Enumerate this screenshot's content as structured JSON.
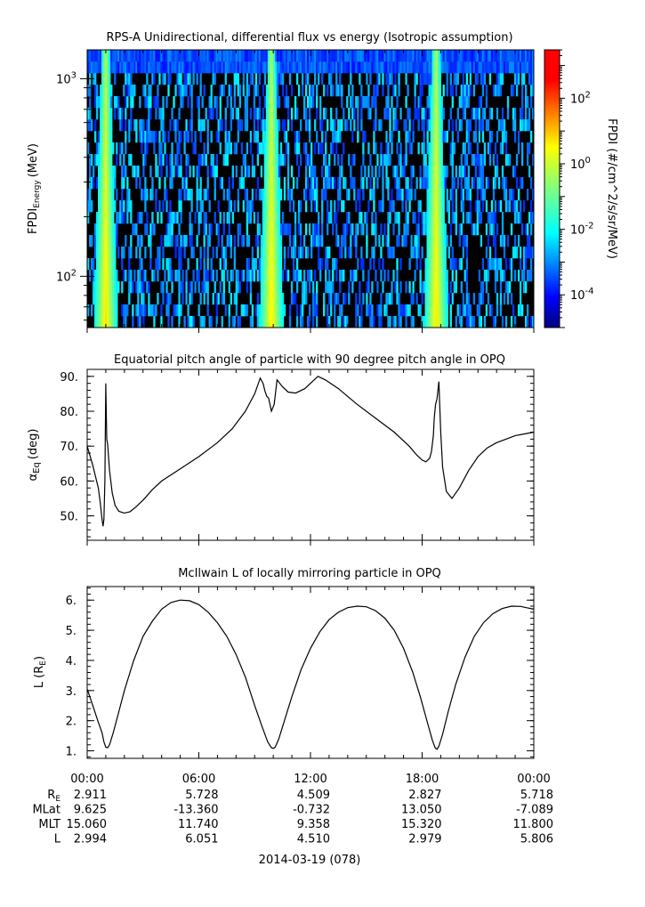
{
  "chart_data": [
    {
      "type": "heatmap",
      "title": "RPS-A Unidirectional, differential flux vs energy (Isotropic assumption)",
      "ylabel": "FPDI",
      "ylabel_sub": "Energy",
      "ylabel_unit": "(MeV)",
      "yscale": "log",
      "ylim": [
        55,
        1400
      ],
      "y_ticks": [
        {
          "value": 100,
          "base": "10",
          "exp": "2"
        },
        {
          "value": 1000,
          "base": "10",
          "exp": "3"
        }
      ],
      "xlim_hours": [
        0,
        24
      ],
      "colorbar": {
        "label": "FPDI (#/cm^2/s/sr/MeV)",
        "scale": "log",
        "range": [
          1e-05,
          3000
        ],
        "ticks": [
          {
            "value": 0.0001,
            "base": "10",
            "exp": "-4"
          },
          {
            "value": 0.01,
            "base": "10",
            "exp": "-2"
          },
          {
            "value": 1,
            "base": "10",
            "exp": "0"
          },
          {
            "value": 100,
            "base": "10",
            "exp": "2"
          }
        ]
      },
      "bright_bands_hours": [
        1.0,
        9.9,
        18.75
      ]
    },
    {
      "type": "line",
      "title": "Equatorial pitch angle of particle with 90 degree pitch angle in OPQ",
      "ylabel": "α",
      "ylabel_sub": "Eq",
      "ylabel_unit": "(deg)",
      "ylim": [
        43,
        92
      ],
      "y_ticks": [
        50,
        60,
        70,
        80,
        90
      ],
      "y_tick_labels": [
        "50.",
        "60.",
        "70.",
        "80.",
        "90."
      ],
      "x_hours": [
        0,
        0.3,
        0.6,
        0.7,
        0.8,
        0.85,
        0.9,
        0.95,
        1.0,
        1.05,
        1.1,
        1.2,
        1.35,
        1.5,
        1.7,
        2.0,
        2.3,
        2.6,
        3.0,
        3.5,
        4.0,
        5.0,
        6.0,
        7.0,
        7.8,
        8.5,
        9.0,
        9.3,
        9.45,
        9.55,
        9.65,
        9.75,
        9.8,
        9.9,
        10.05,
        10.2,
        10.5,
        10.8,
        11.2,
        11.7,
        12.1,
        12.4,
        12.8,
        13.5,
        14.5,
        15.5,
        16.5,
        17.3,
        17.7,
        18.0,
        18.2,
        18.4,
        18.5,
        18.6,
        18.65,
        18.72,
        18.8,
        18.9,
        19.0,
        19.1,
        19.3,
        19.6,
        20.0,
        20.5,
        21.0,
        21.5,
        22.0,
        22.5,
        23.0,
        23.5,
        24.0
      ],
      "values": [
        70,
        64.5,
        58,
        54,
        49,
        47,
        49,
        60,
        88,
        72,
        70.5,
        63,
        56.5,
        53,
        51.3,
        50.8,
        51.2,
        52.5,
        54.5,
        57.5,
        60,
        63.5,
        67,
        71,
        75,
        80,
        85,
        89.5,
        88,
        85.8,
        84.3,
        83.8,
        82.5,
        80,
        82,
        89,
        87,
        85.5,
        85.2,
        86.5,
        88.5,
        90,
        89,
        86.5,
        82,
        78,
        74,
        70,
        67.5,
        66,
        65.5,
        66.5,
        68.5,
        73,
        78,
        82,
        83.5,
        88.5,
        74,
        64,
        57,
        55,
        58,
        63,
        67,
        69.5,
        71,
        72,
        73,
        73.5,
        74
      ]
    },
    {
      "type": "line",
      "title": "McIlwain L of locally mirroring particle in OPQ",
      "ylabel": "L",
      "ylabel_unit": "(R",
      "ylabel_sub": "E",
      "ylabel_close": ")",
      "ylim": [
        0.75,
        6.45
      ],
      "y_ticks": [
        1,
        2,
        3,
        4,
        5,
        6
      ],
      "y_tick_labels": [
        "1.",
        "2.",
        "3.",
        "4.",
        "5.",
        "6."
      ],
      "x_hours": [
        0,
        0.3,
        0.6,
        0.8,
        0.9,
        1.0,
        1.1,
        1.2,
        1.4,
        1.7,
        2.0,
        2.5,
        3.0,
        3.5,
        4.0,
        4.5,
        5.0,
        5.5,
        6.0,
        6.5,
        7.0,
        7.5,
        8.0,
        8.5,
        9.0,
        9.4,
        9.7,
        9.9,
        10.0,
        10.1,
        10.3,
        10.6,
        11.0,
        11.5,
        12.0,
        12.5,
        13.0,
        13.5,
        14.0,
        14.5,
        15.0,
        15.5,
        16.0,
        16.5,
        17.0,
        17.5,
        17.9,
        18.3,
        18.55,
        18.7,
        18.8,
        18.9,
        19.1,
        19.4,
        19.8,
        20.3,
        20.8,
        21.3,
        21.8,
        22.3,
        22.8,
        23.3,
        23.6,
        24.0
      ],
      "values": [
        3.05,
        2.5,
        1.95,
        1.6,
        1.3,
        1.12,
        1.1,
        1.2,
        1.6,
        2.3,
        3.0,
        4.0,
        4.8,
        5.3,
        5.7,
        5.92,
        6.0,
        5.98,
        5.85,
        5.6,
        5.25,
        4.8,
        4.2,
        3.45,
        2.5,
        1.8,
        1.3,
        1.1,
        1.08,
        1.12,
        1.4,
        2.0,
        2.8,
        3.7,
        4.4,
        4.95,
        5.35,
        5.6,
        5.75,
        5.8,
        5.78,
        5.65,
        5.4,
        5.0,
        4.4,
        3.6,
        2.8,
        1.9,
        1.35,
        1.1,
        1.05,
        1.15,
        1.55,
        2.3,
        3.2,
        4.1,
        4.8,
        5.25,
        5.55,
        5.72,
        5.8,
        5.79,
        5.75,
        5.7
      ]
    }
  ],
  "x_axis": {
    "tick_labels": [
      "00:00",
      "06:00",
      "12:00",
      "18:00",
      "00:00"
    ],
    "date_label": "2014-03-19 (078)"
  },
  "ephemeris": {
    "rows": [
      {
        "label": "R",
        "label_sub": "E",
        "values": [
          "2.911",
          "5.728",
          "4.509",
          "2.827",
          "5.718"
        ]
      },
      {
        "label": "MLat",
        "label_sub": "",
        "values": [
          "9.625",
          "-13.360",
          "-0.732",
          "13.050",
          "-7.089"
        ]
      },
      {
        "label": "MLT",
        "label_sub": "",
        "values": [
          "15.060",
          "11.740",
          "9.358",
          "15.320",
          "11.800"
        ]
      },
      {
        "label": "L",
        "label_sub": "",
        "values": [
          "2.994",
          "6.051",
          "4.510",
          "2.979",
          "5.806"
        ]
      }
    ]
  }
}
